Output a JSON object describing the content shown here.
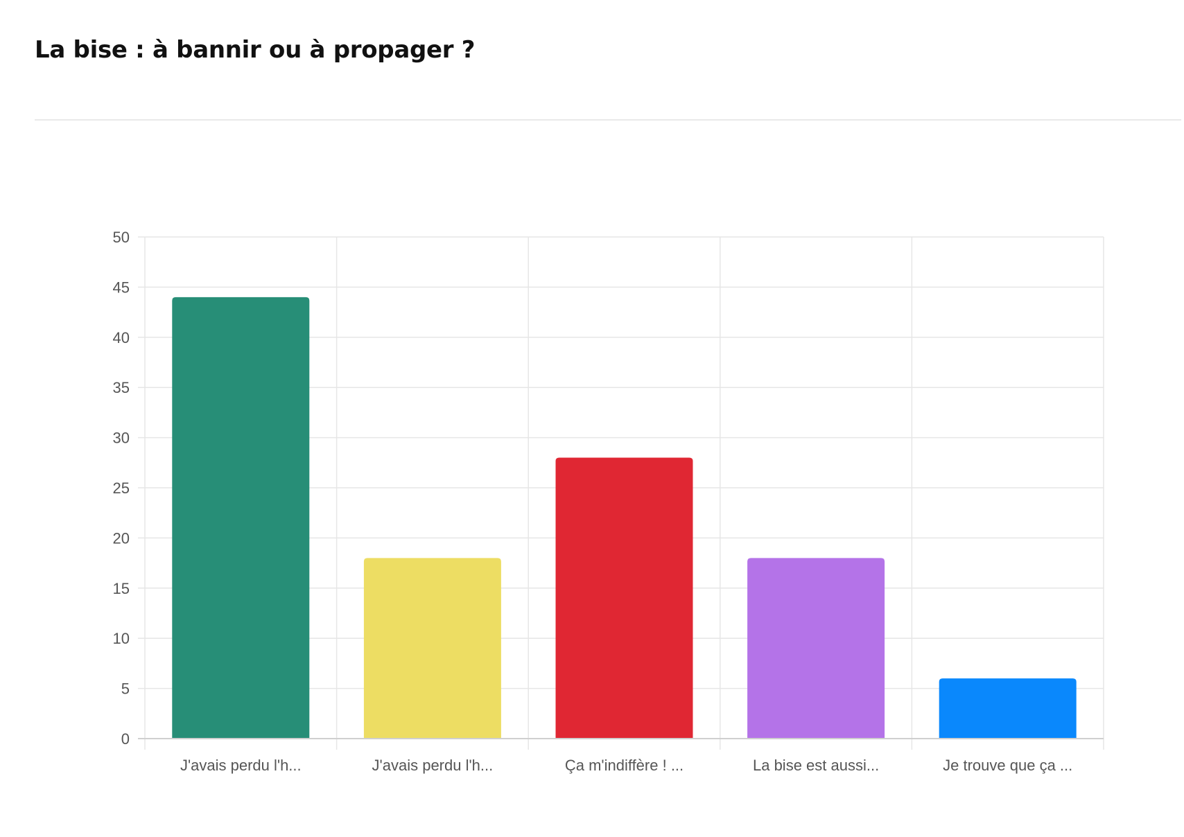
{
  "page": {
    "title": "La bise : à bannir ou à propager ?"
  },
  "chart_data": {
    "type": "bar",
    "categories": [
      "J'avais perdu l'h...",
      "J'avais perdu l'h...",
      "Ça m'indiffère ! ...",
      "La bise est aussi...",
      "Je trouve que ça ..."
    ],
    "values": [
      44,
      18,
      28,
      18,
      6
    ],
    "colors": [
      "#278e77",
      "#eddd63",
      "#e02733",
      "#b473e8",
      "#0a88fc"
    ],
    "title": "",
    "xlabel": "",
    "ylabel": "",
    "ylim": [
      0,
      50
    ],
    "yticks": [
      0,
      5,
      10,
      15,
      20,
      25,
      30,
      35,
      40,
      45,
      50
    ],
    "grid": true,
    "legend": "none"
  }
}
